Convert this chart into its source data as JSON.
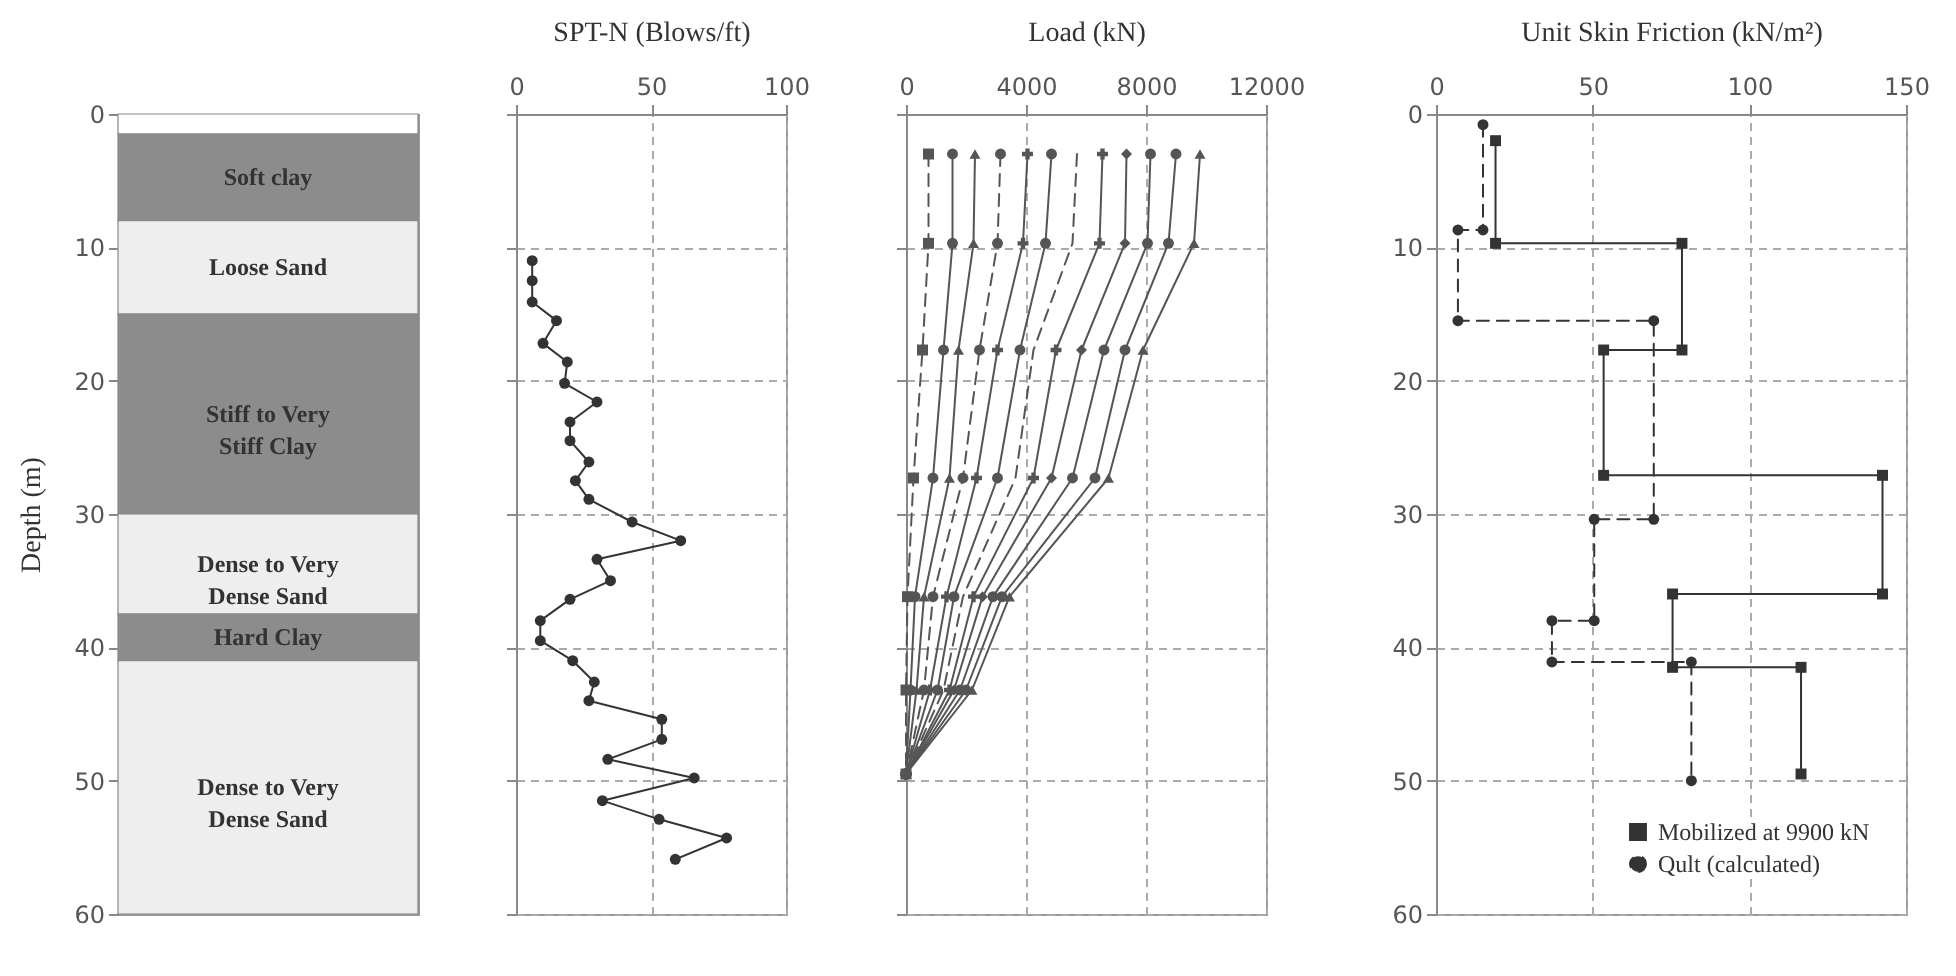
{
  "chart_data": [
    {
      "type": "bar",
      "stacked": true,
      "categories": [
        null
      ],
      "ylabel": "Depth (m)",
      "ylim": [
        60,
        0
      ],
      "yticks": [
        0,
        10,
        20,
        30,
        40,
        50,
        60
      ],
      "tick_labels": "y",
      "series": [
        {
          "color": "#ffffff",
          "values": [
            1.5
          ]
        },
        {
          "name": "Soft clay",
          "color": "#8c8c8c",
          "values": [
            6.5
          ]
        },
        {
          "name": "Loose Sand",
          "color": "#eeeeee",
          "values": [
            7
          ]
        },
        {
          "name": "Stiff to Very Stiff Clay",
          "color": "#8c8c8c",
          "values": [
            15
          ]
        },
        {
          "name": "Dense to Very Dense Sand",
          "color": "#eeeeee",
          "values": [
            7.5
          ]
        },
        {
          "name": "Hard Clay",
          "color": "#8c8c8c",
          "values": [
            3.5
          ]
        },
        {
          "name": "Dense to Very Dense Sand",
          "color": "#eeeeee",
          "values": [
            19
          ]
        }
      ]
    },
    {
      "type": "line",
      "orientation": "horizontal",
      "xlabel": "SPT-N (Blows/ft)",
      "color": "#333333",
      "marker": "circle",
      "xlim": [
        0,
        100
      ],
      "xticks": [
        0,
        50,
        100
      ],
      "ylim": [
        60,
        0
      ],
      "yticks": [
        0,
        10,
        20,
        30,
        40,
        50,
        60
      ],
      "tick_labels": "x",
      "grid": true,
      "x": [
        11.0,
        12.5,
        14.1,
        15.5,
        17.2,
        18.6,
        20.2,
        21.6,
        23.1,
        24.5,
        26.1,
        27.5,
        28.9,
        30.6,
        32.0,
        33.4,
        35.0,
        36.4,
        38.0,
        39.5,
        41.0,
        42.6,
        44.0,
        45.4,
        46.9,
        48.4,
        49.8,
        51.5,
        52.9,
        54.3,
        55.9
      ],
      "values": [
        6,
        6,
        6,
        15,
        10,
        19,
        18,
        30,
        20,
        20,
        27,
        22,
        27,
        43,
        61,
        30,
        35,
        20,
        9,
        9,
        21,
        29,
        27,
        54,
        54,
        34,
        66,
        32,
        53,
        78,
        59
      ]
    },
    {
      "type": "line",
      "orientation": "horizontal",
      "xlabel": "Load (kN)",
      "xlim": [
        0,
        12000
      ],
      "xticks": [
        0,
        4000,
        8000,
        12000
      ],
      "ylim": [
        60,
        0
      ],
      "yticks": [
        0,
        10,
        20,
        30,
        40,
        50,
        60
      ],
      "tick_labels": "x",
      "grid": true,
      "x": [
        3,
        9.7,
        17.7,
        27.3,
        36.2,
        43.2,
        49.5
      ],
      "series": [
        {
          "color": "#555555",
          "marker": "square",
          "line_style": "dashed",
          "values": [
            750,
            750,
            550,
            250,
            50,
            0,
            0
          ]
        },
        {
          "color": "#555555",
          "marker": "circle",
          "line_style": "solid",
          "values": [
            1550,
            1550,
            1250,
            900,
            300,
            150,
            0
          ]
        },
        {
          "color": "#555555",
          "marker": "triangle",
          "line_style": "solid",
          "values": [
            2300,
            2250,
            1750,
            1450,
            600,
            350,
            0
          ]
        },
        {
          "color": "#555555",
          "marker": "circle",
          "line_style": "dashed",
          "values": [
            3150,
            3050,
            2450,
            1900,
            900,
            600,
            0
          ]
        },
        {
          "color": "#555555",
          "marker": "cross",
          "line_style": "solid",
          "values": [
            4050,
            3900,
            3050,
            2350,
            1350,
            800,
            0
          ]
        },
        {
          "color": "#555555",
          "marker": "circle",
          "line_style": "solid",
          "values": [
            4850,
            4650,
            3800,
            3050,
            1600,
            1050,
            0
          ]
        },
        {
          "color": "#555555",
          "marker": "none",
          "line_style": "dashed",
          "values": [
            5700,
            5550,
            4250,
            3650,
            1900,
            1250,
            0
          ]
        },
        {
          "color": "#555555",
          "marker": "cross",
          "line_style": "solid",
          "values": [
            6550,
            6450,
            5000,
            4250,
            2250,
            1450,
            0
          ]
        },
        {
          "color": "#555555",
          "marker": "diamond",
          "line_style": "solid",
          "values": [
            7350,
            7300,
            5850,
            4850,
            2550,
            1600,
            0
          ]
        },
        {
          "color": "#555555",
          "marker": "circle",
          "line_style": "solid",
          "values": [
            8150,
            8050,
            6600,
            5550,
            2900,
            1800,
            0
          ]
        },
        {
          "color": "#555555",
          "marker": "circle",
          "line_style": "solid",
          "values": [
            9000,
            8750,
            7300,
            6300,
            3200,
            2000,
            0
          ]
        },
        {
          "color": "#555555",
          "marker": "triangle",
          "line_style": "solid",
          "values": [
            9800,
            9600,
            7900,
            6750,
            3450,
            2200,
            0
          ]
        }
      ]
    },
    {
      "type": "line",
      "orientation": "horizontal",
      "xlabel": "Unit Skin Friction (kN/m²)",
      "xlim": [
        0,
        150
      ],
      "xticks": [
        0,
        50,
        100,
        150
      ],
      "ylim": [
        60,
        0
      ],
      "yticks": [
        0,
        10,
        20,
        30,
        40,
        50,
        60
      ],
      "grid": true,
      "legend": "bottom right",
      "series": [
        {
          "name": "Mobilized at 9900 kN",
          "color": "#333333",
          "marker": "square",
          "line_style": "solid",
          "x": [
            2,
            9.7,
            9.7,
            17.7,
            17.7,
            27.1,
            27.1,
            36,
            36,
            41.5,
            41.5,
            49.5
          ],
          "values": [
            19,
            19,
            78.5,
            78.5,
            53.5,
            53.5,
            142.5,
            142.5,
            75.5,
            75.5,
            116.5,
            116.5
          ]
        },
        {
          "name": "Qult (calculated)",
          "color": "#333333",
          "marker": "circle",
          "line_style": "dashed",
          "x": [
            0.8,
            8.7,
            8.7,
            15.5,
            15.5,
            30.4,
            30.4,
            38,
            38,
            41.1,
            41.1,
            50
          ],
          "values": [
            15,
            15,
            7,
            7,
            69.5,
            69.5,
            50.5,
            50.5,
            37,
            37,
            81.5,
            81.5
          ]
        }
      ]
    }
  ]
}
